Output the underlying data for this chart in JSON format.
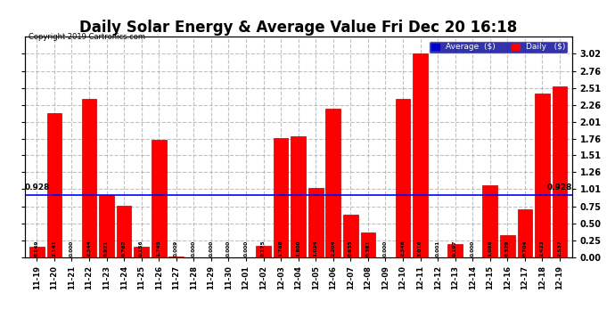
{
  "title": "Daily Solar Energy & Average Value Fri Dec 20 16:18",
  "copyright": "Copyright 2019 Cartronics.com",
  "categories": [
    "11-19",
    "11-20",
    "11-21",
    "11-22",
    "11-23",
    "11-24",
    "11-25",
    "11-26",
    "11-27",
    "11-28",
    "11-29",
    "11-30",
    "12-01",
    "12-02",
    "12-03",
    "12-04",
    "12-05",
    "12-06",
    "12-07",
    "12-08",
    "12-09",
    "12-10",
    "12-11",
    "12-12",
    "12-13",
    "12-14",
    "12-15",
    "12-16",
    "12-17",
    "12-18",
    "12-19"
  ],
  "values": [
    0.149,
    2.141,
    0.0,
    2.344,
    0.921,
    0.762,
    0.156,
    1.745,
    0.009,
    0.0,
    0.0,
    0.0,
    0.0,
    0.175,
    1.768,
    1.8,
    1.024,
    2.204,
    0.635,
    0.361,
    0.0,
    2.346,
    3.016,
    0.001,
    0.197,
    0.0,
    1.066,
    0.329,
    0.704,
    2.423,
    2.537
  ],
  "average_line": 0.928,
  "average_label": "0.928",
  "bar_color": "#ff0000",
  "bar_edge_color": "#bb0000",
  "avg_line_color": "#0000ff",
  "background_color": "#ffffff",
  "plot_bg_color": "#ffffff",
  "grid_color": "#999999",
  "ylim": [
    0.0,
    3.27
  ],
  "yticks": [
    0.0,
    0.25,
    0.5,
    0.75,
    1.01,
    1.26,
    1.51,
    1.76,
    2.01,
    2.26,
    2.51,
    2.76,
    3.02
  ],
  "legend_avg_color": "#0000cc",
  "legend_daily_color": "#ff0000",
  "title_fontsize": 12,
  "bar_width": 0.85
}
